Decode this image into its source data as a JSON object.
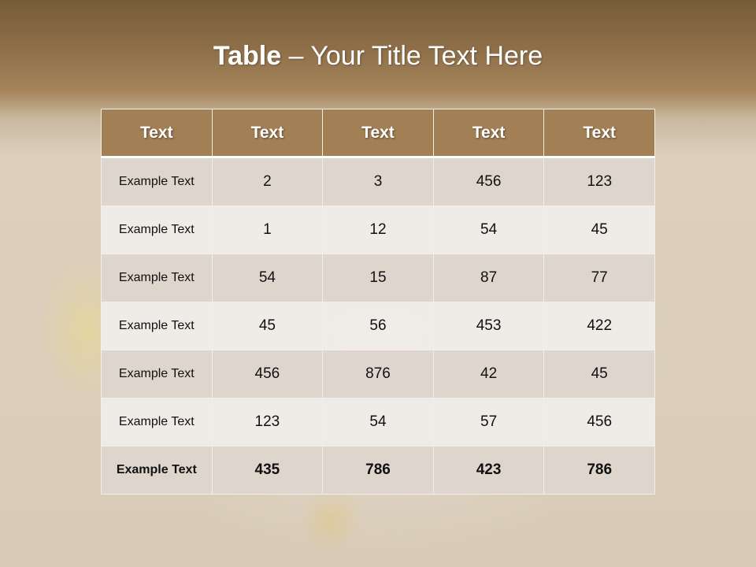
{
  "title": {
    "bold": "Table",
    "rest": " – Your Title Text Here"
  },
  "table": {
    "headers": [
      "Text",
      "Text",
      "Text",
      "Text",
      "Text"
    ],
    "rows": [
      [
        "Example Text",
        "2",
        "3",
        "456",
        "123"
      ],
      [
        "Example Text",
        "1",
        "12",
        "54",
        "45"
      ],
      [
        "Example Text",
        "54",
        "15",
        "87",
        "77"
      ],
      [
        "Example Text",
        "45",
        "56",
        "453",
        "422"
      ],
      [
        "Example Text",
        "456",
        "876",
        "42",
        "45"
      ],
      [
        "Example Text",
        "123",
        "54",
        "57",
        "456"
      ],
      [
        "Example Text",
        "435",
        "786",
        "423",
        "786"
      ]
    ]
  },
  "colors": {
    "header": "#a27f54",
    "band_top": "#765c3a"
  }
}
